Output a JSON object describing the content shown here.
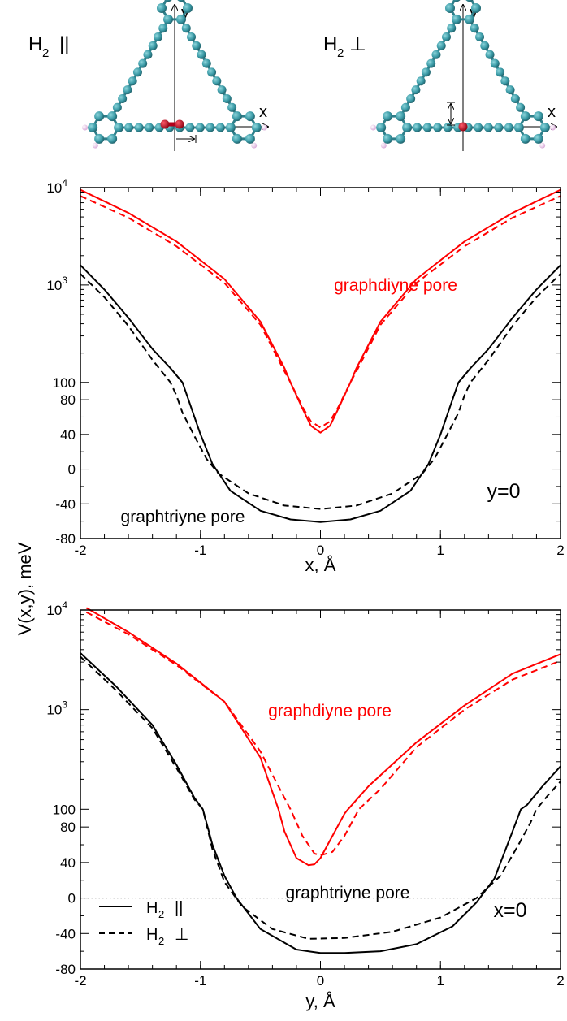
{
  "ylabel": "V(x,y), meV",
  "molecules": [
    {
      "label_main": "H",
      "label_sub": "2",
      "label_symbol": "||",
      "axis_x": "x",
      "axis_y": "y"
    },
    {
      "label_main": "H",
      "label_sub": "2",
      "label_symbol": "⊥",
      "axis_x": "x",
      "axis_y": "y"
    }
  ],
  "legend": [
    {
      "main": "H",
      "sub": "2",
      "symbol": "||",
      "style": "solid"
    },
    {
      "main": "H",
      "sub": "2",
      "symbol": "⊥",
      "style": "dashed"
    }
  ],
  "colors": {
    "graphdiyne": "#ff0000",
    "graphtriyne": "#000000",
    "carbon": "#3a9aa6",
    "hydrogen": "#f2c2f2",
    "h2_molecule": "#b3001b"
  },
  "chart_data": [
    {
      "type": "line",
      "title": "",
      "xlabel": "x, Å",
      "ylabel": "V(x,y), meV",
      "xlim": [
        -2,
        2
      ],
      "x_ticks": [
        "-2",
        "-1",
        "0",
        "1",
        "2"
      ],
      "y_scale": "piecewise: linear below 100 meV, logarithmic above 100 meV",
      "y_ticks": [
        "-80",
        "-40",
        "0",
        "40",
        "80",
        "100",
        "10^3",
        "10^4"
      ],
      "panel_label": "y=0",
      "annotations": [
        "graphdiyne pore",
        "graphtriyne pore"
      ],
      "grid": false,
      "series": [
        {
          "name": "graphdiyne pore, H2 ||",
          "color": "#ff0000",
          "style": "solid",
          "x": [
            -2,
            -1.6,
            -1.2,
            -0.8,
            -0.5,
            -0.3,
            -0.25,
            -0.15,
            -0.08,
            0,
            0.08,
            0.15,
            0.25,
            0.3,
            0.5,
            0.8,
            1.2,
            1.6,
            2
          ],
          "y": [
            9500,
            5500,
            2800,
            1150,
            420,
            140,
            100,
            70,
            50,
            42,
            50,
            70,
            100,
            140,
            420,
            1150,
            2800,
            5500,
            9500
          ]
        },
        {
          "name": "graphdiyne pore, H2 ⊥",
          "color": "#ff0000",
          "style": "dashed",
          "x": [
            -2,
            -1.6,
            -1.2,
            -0.8,
            -0.5,
            -0.3,
            -0.25,
            -0.15,
            -0.08,
            0,
            0.08,
            0.15,
            0.25,
            0.3,
            0.5,
            0.8,
            1.2,
            1.6,
            2
          ],
          "y": [
            8200,
            4900,
            2500,
            1050,
            390,
            130,
            100,
            72,
            55,
            48,
            55,
            72,
            100,
            130,
            390,
            1050,
            2500,
            4900,
            8200
          ]
        },
        {
          "name": "graphtriyne pore, H2 ||",
          "color": "#000000",
          "style": "solid",
          "x": [
            -2,
            -1.8,
            -1.6,
            -1.4,
            -1.25,
            -1.15,
            -1.1,
            -1.0,
            -0.9,
            -0.75,
            -0.5,
            -0.25,
            0,
            0.25,
            0.5,
            0.75,
            0.9,
            1.0,
            1.1,
            1.15,
            1.25,
            1.4,
            1.6,
            1.8,
            2
          ],
          "y": [
            1600,
            900,
            460,
            220,
            140,
            100,
            80,
            40,
            6,
            -25,
            -48,
            -58,
            -61,
            -58,
            -48,
            -25,
            6,
            40,
            80,
            100,
            140,
            220,
            460,
            900,
            1600
          ]
        },
        {
          "name": "graphtriyne pore, H2 ⊥",
          "color": "#000000",
          "style": "dashed",
          "x": [
            -2,
            -1.8,
            -1.6,
            -1.4,
            -1.25,
            -1.2,
            -1.15,
            -1.05,
            -0.95,
            -0.85,
            -0.6,
            -0.3,
            0,
            0.3,
            0.6,
            0.85,
            0.95,
            1.05,
            1.15,
            1.2,
            1.25,
            1.4,
            1.6,
            1.8,
            2
          ],
          "y": [
            1300,
            750,
            380,
            170,
            100,
            85,
            65,
            38,
            12,
            -5,
            -28,
            -42,
            -46,
            -42,
            -28,
            -5,
            12,
            38,
            65,
            85,
            100,
            170,
            380,
            750,
            1300
          ]
        }
      ]
    },
    {
      "type": "line",
      "title": "",
      "xlabel": "y,  Å",
      "ylabel": "V(x,y), meV",
      "xlim": [
        -2,
        2
      ],
      "x_ticks": [
        "-2",
        "-1",
        "0",
        "1",
        "2"
      ],
      "y_scale": "piecewise: linear below 100 meV, logarithmic above 100 meV",
      "y_ticks": [
        "-80",
        "-40",
        "0",
        "40",
        "80",
        "100",
        "10^3",
        "10^4"
      ],
      "panel_label": "x=0",
      "annotations": [
        "graphdiyne pore",
        "graphtriyne pore"
      ],
      "grid": false,
      "series": [
        {
          "name": "graphdiyne pore, H2 ||",
          "color": "#ff0000",
          "style": "solid",
          "x": [
            -1.95,
            -1.6,
            -1.2,
            -0.8,
            -0.5,
            -0.35,
            -0.3,
            -0.2,
            -0.1,
            -0.05,
            0,
            0.1,
            0.2,
            0.23,
            0.4,
            0.8,
            1.2,
            1.6,
            2
          ],
          "y": [
            10500,
            6000,
            2900,
            1200,
            330,
            100,
            75,
            45,
            37,
            38,
            45,
            70,
            95,
            100,
            170,
            470,
            1100,
            2300,
            3600
          ]
        },
        {
          "name": "graphdiyne pore, H2 ⊥",
          "color": "#ff0000",
          "style": "dashed",
          "x": [
            -1.95,
            -1.6,
            -1.2,
            -0.8,
            -0.5,
            -0.3,
            -0.25,
            -0.15,
            -0.05,
            0,
            0.1,
            0.2,
            0.32,
            0.5,
            0.8,
            1.2,
            1.6,
            2
          ],
          "y": [
            9500,
            5700,
            2800,
            1200,
            380,
            130,
            100,
            70,
            50,
            48,
            52,
            70,
            100,
            160,
            420,
            1000,
            2000,
            3100
          ]
        },
        {
          "name": "graphtriyne pore, H2 ||",
          "color": "#000000",
          "style": "solid",
          "x": [
            -2,
            -1.7,
            -1.4,
            -1.2,
            -1.05,
            -0.98,
            -0.9,
            -0.8,
            -0.7,
            -0.5,
            -0.2,
            0,
            0.2,
            0.5,
            0.8,
            1.1,
            1.3,
            1.45,
            1.6,
            1.67,
            1.72,
            1.85,
            2
          ],
          "y": [
            3700,
            1700,
            700,
            280,
            130,
            100,
            60,
            25,
            0,
            -35,
            -58,
            -62,
            -62,
            -60,
            -52,
            -32,
            -5,
            22,
            75,
            100,
            110,
            170,
            270
          ]
        },
        {
          "name": "graphtriyne pore, H2 ⊥",
          "color": "#000000",
          "style": "dashed",
          "x": [
            -2,
            -1.7,
            -1.4,
            -1.2,
            -1.05,
            -0.98,
            -0.9,
            -0.8,
            -0.65,
            -0.4,
            -0.1,
            0.2,
            0.6,
            1.0,
            1.3,
            1.5,
            1.65,
            1.75,
            1.8,
            1.9,
            2
          ],
          "y": [
            3400,
            1550,
            650,
            260,
            125,
            100,
            55,
            18,
            -10,
            -35,
            -46,
            -45,
            -38,
            -22,
            0,
            25,
            60,
            85,
            100,
            140,
            190
          ]
        }
      ]
    }
  ]
}
